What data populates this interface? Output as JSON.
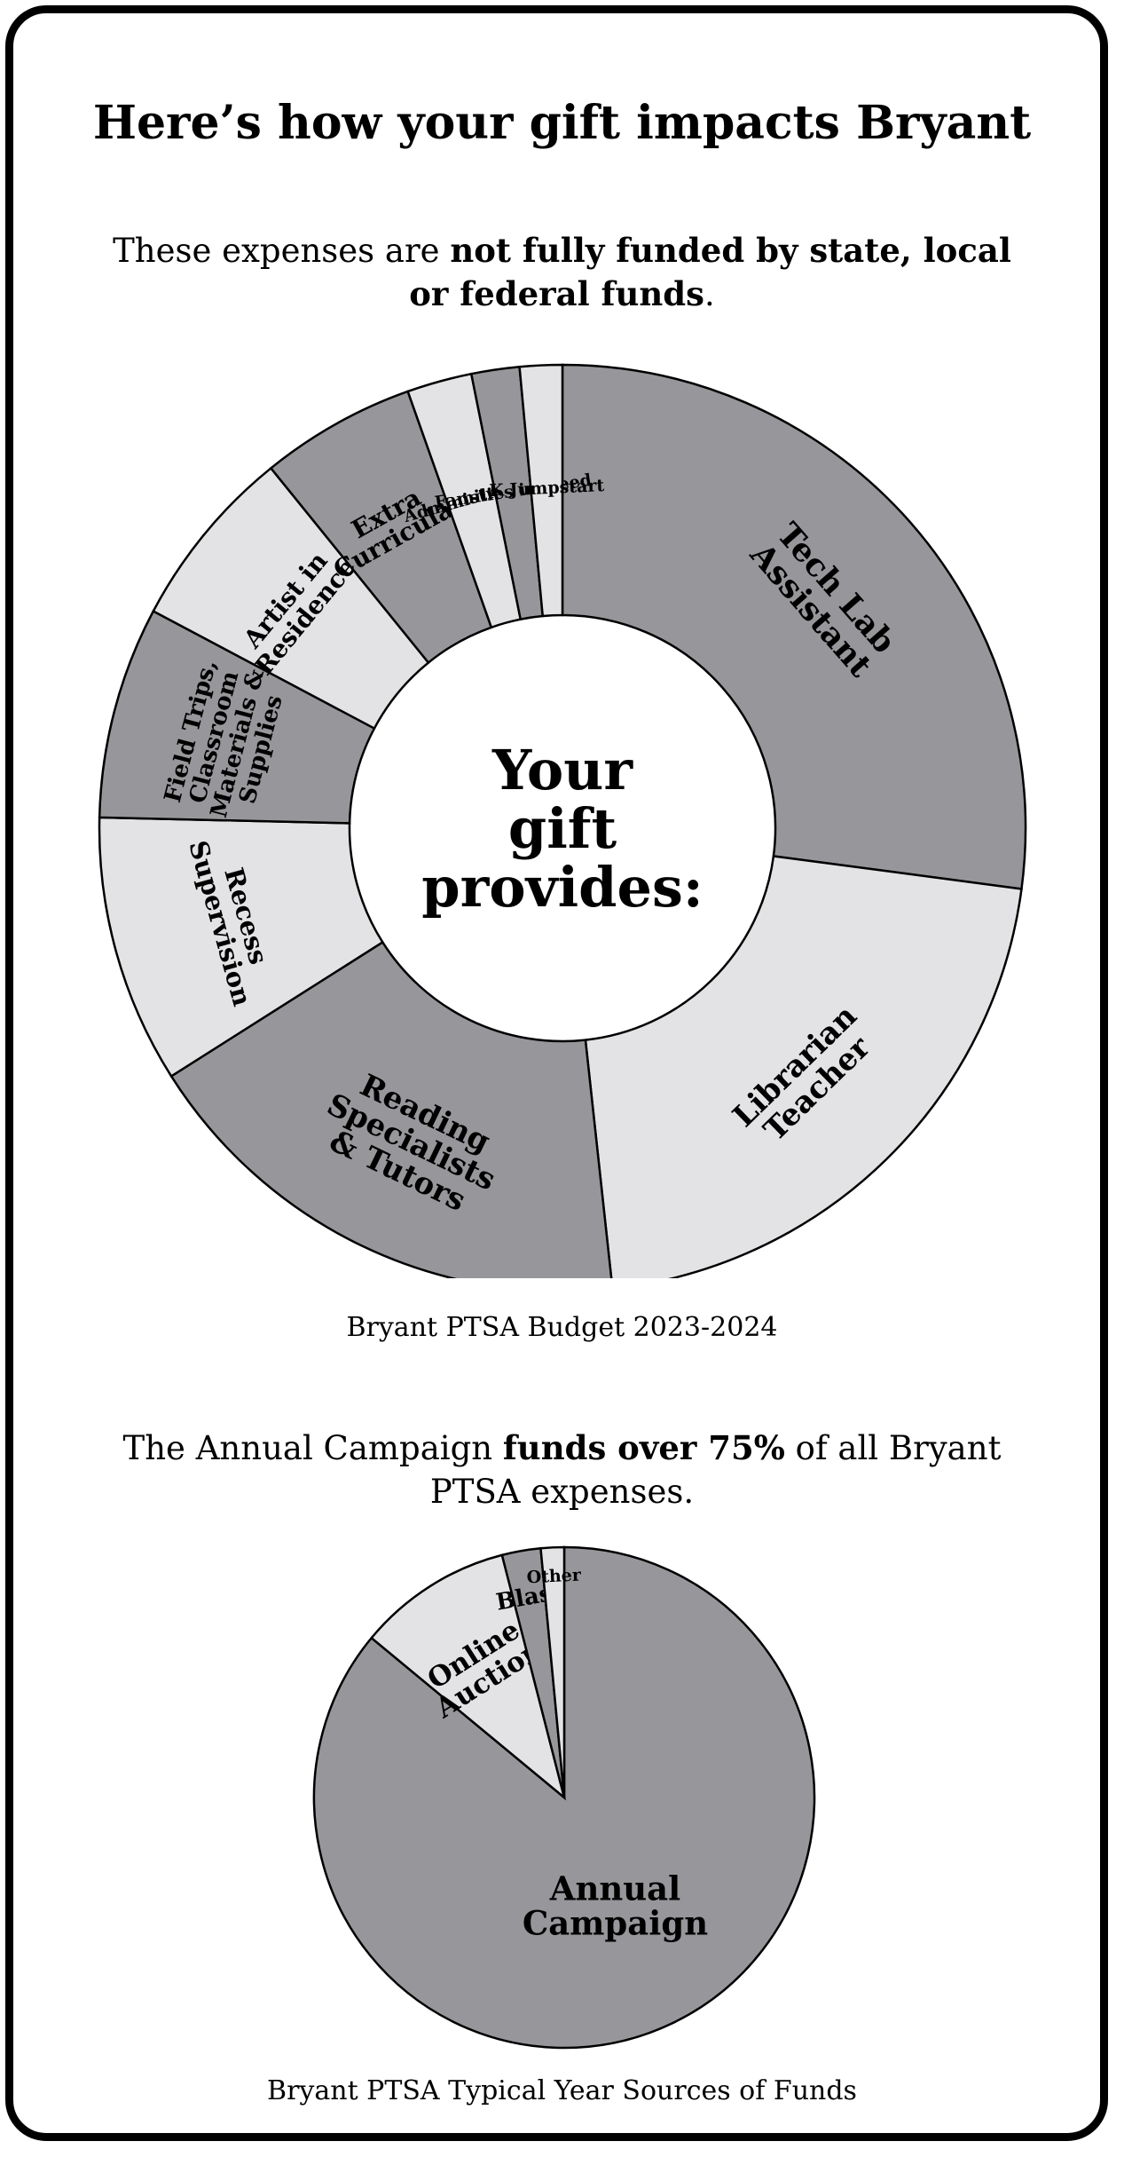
{
  "title": "Here’s how your gift impacts Bryant",
  "intro": {
    "pre": "These expenses are ",
    "bold": "not fully funded by state, local or federal funds",
    "post": "."
  },
  "donut_center": [
    "Your",
    "gift",
    "provides:"
  ],
  "budget_caption": "Bryant PTSA Budget 2023-2024",
  "campaign": {
    "pre": "The Annual Campaign ",
    "bold": "funds over 75%",
    "post": " of all Bryant PTSA expenses."
  },
  "sources_caption": "Bryant PTSA Typical Year Sources of Funds",
  "colors": {
    "dark": "#97979b",
    "light": "#e3e3e5",
    "stroke": "#000000"
  },
  "chart_data": [
    {
      "type": "pie",
      "title": "Bryant PTSA Budget 2023-2024",
      "donut": true,
      "units": "percent (estimated)",
      "slices": [
        {
          "label": "Tech Lab Assistant",
          "lines": [
            "Tech Lab",
            "Assistant"
          ],
          "value": 27.5,
          "shade": "dark"
        },
        {
          "label": "Librarian Teacher",
          "lines": [
            "Librarian",
            "Teacher"
          ],
          "value": 21.5,
          "shade": "light"
        },
        {
          "label": "Reading Specialists & Tutors",
          "lines": [
            "Reading",
            "Specialists",
            "& Tutors"
          ],
          "value": 18.0,
          "shade": "dark"
        },
        {
          "label": "Recess Supervision",
          "lines": [
            "Recess",
            "Supervision"
          ],
          "value": 9.5,
          "shade": "light"
        },
        {
          "label": "Field Trips, Classroom Materials & Supplies",
          "lines": [
            "Field Trips,",
            "Classroom",
            "Materials &",
            "Supplies"
          ],
          "value": 7.5,
          "shade": "dark"
        },
        {
          "label": "Artist in Residence",
          "lines": [
            "Artist in",
            "Residence"
          ],
          "value": 6.5,
          "shade": "light"
        },
        {
          "label": "Extra Curricular",
          "lines": [
            "Extra",
            "Curricular"
          ],
          "value": 5.5,
          "shade": "dark"
        },
        {
          "label": "Administrative",
          "lines": [
            "Administrative"
          ],
          "value": 2.3,
          "shade": "light"
        },
        {
          "label": "Families in Need",
          "lines": [
            "Families in Need"
          ],
          "value": 1.7,
          "shade": "dark"
        },
        {
          "label": "K Jumpstart",
          "lines": [
            "K Jumpstart"
          ],
          "value": 1.5,
          "shade": "light"
        }
      ]
    },
    {
      "type": "pie",
      "title": "Bryant PTSA Typical Year Sources of Funds",
      "donut": false,
      "units": "percent (estimated)",
      "slices": [
        {
          "label": "Annual Campaign",
          "lines": [
            "Annual",
            "Campaign"
          ],
          "value": 86.0,
          "shade": "dark"
        },
        {
          "label": "Online Auction",
          "lines": [
            "Online",
            "Auction"
          ],
          "value": 10.0,
          "shade": "light"
        },
        {
          "label": "Blast",
          "lines": [
            "Blast"
          ],
          "value": 2.5,
          "shade": "dark"
        },
        {
          "label": "Other",
          "lines": [
            "Other"
          ],
          "value": 1.5,
          "shade": "light"
        }
      ]
    }
  ]
}
